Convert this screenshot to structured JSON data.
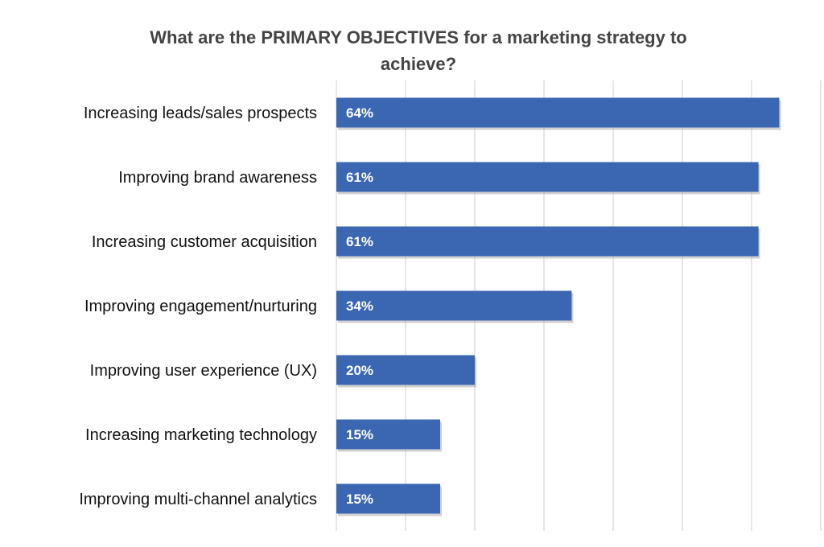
{
  "chart_data": {
    "type": "bar",
    "orientation": "horizontal",
    "title_lines": [
      "What are the PRIMARY OBJECTIVES for a marketing strategy to",
      "achieve?"
    ],
    "categories": [
      "Increasing leads/sales prospects",
      "Improving brand awareness",
      "Increasing customer acquisition",
      "Improving engagement/nurturing",
      "Improving user experience (UX)",
      "Increasing marketing technology",
      "Improving multi-channel analytics"
    ],
    "values": [
      64,
      61,
      61,
      34,
      20,
      15,
      15
    ],
    "data_labels": [
      "64%",
      "61%",
      "61%",
      "34%",
      "20%",
      "15%",
      "15%"
    ],
    "xlim": [
      0,
      70
    ],
    "grid": true,
    "legend": "none",
    "bar_color": "#3b67b2",
    "gridline_color": "#cfcfcf"
  }
}
